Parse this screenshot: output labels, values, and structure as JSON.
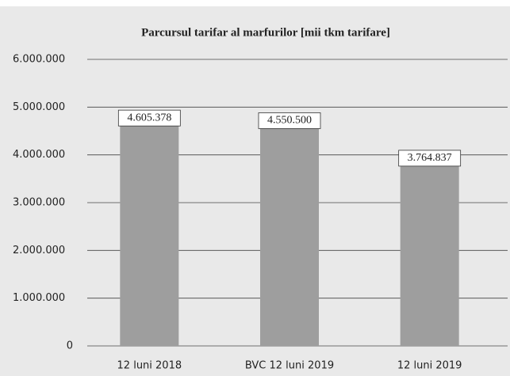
{
  "chart_data": {
    "type": "bar",
    "title": "Parcursul tarifar al marfurilor [mii tkm tarifare]",
    "categories": [
      "12 luni 2018",
      "BVC 12 luni 2019",
      "12 luni 2019"
    ],
    "values": [
      4605378,
      4550500,
      3764837
    ],
    "value_labels": [
      "4.605.378",
      "4.550.500",
      "3.764.837"
    ],
    "color": "#9e9e9e",
    "ylim": [
      0,
      6000000
    ],
    "yticks": [
      0,
      {
        "value": 1000000,
        "label": "1.000.000"
      },
      {
        "value": 2000000,
        "label": "2.000.000"
      },
      {
        "value": 3000000,
        "label": "3.000.000"
      },
      {
        "value": 4000000,
        "label": "4.000.000"
      },
      {
        "value": 5000000,
        "label": "5.000.000"
      },
      {
        "value": 6000000,
        "label": "6.000.000"
      }
    ],
    "grid": true
  }
}
